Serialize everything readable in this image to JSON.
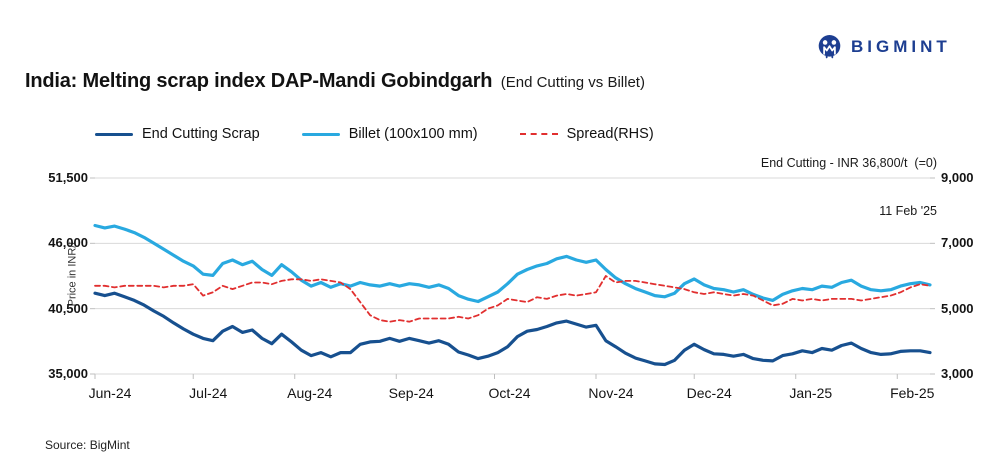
{
  "header": {
    "title_main": "India: Melting scrap index DAP-Mandi Gobindgarh",
    "title_sub": "(End Cutting vs Billet)",
    "brand": "BIGMINT"
  },
  "annotation": {
    "line1": "End Cutting - INR 36,800/t  (=0)",
    "line2": "11 Feb '25"
  },
  "legend": [
    {
      "label": "End Cutting Scrap",
      "color": "#17508f",
      "style": "solid"
    },
    {
      "label": "Billet (100x100 mm)",
      "color": "#29a9e0",
      "style": "solid"
    },
    {
      "label": "Spread(RHS)",
      "color": "#e12f2f",
      "style": "dashed"
    }
  ],
  "source": "Source: BigMint",
  "colors": {
    "end_cutting": "#17508f",
    "billet": "#29a9e0",
    "spread": "#e12f2f",
    "brand_navy": "#1d3e91",
    "gridline": "#d9d9d9",
    "tick": "#bfbfbf"
  },
  "chart_data": {
    "type": "line",
    "title": "India: Melting scrap index DAP-Mandi Gobindgarh (End Cutting vs Billet)",
    "x_axis": {
      "tick_labels": [
        "Jun-24",
        "Jul-24",
        "Aug-24",
        "Sep-24",
        "Oct-24",
        "Nov-24",
        "Dec-24",
        "Jan-25",
        "Feb-25"
      ],
      "tick_days": [
        0,
        30,
        61,
        92,
        122,
        153,
        183,
        214,
        245
      ],
      "total_days": 255
    },
    "left_axis": {
      "label": "Price in INR/t",
      "tick_values": [
        35000,
        40500,
        46000,
        51500
      ],
      "tick_labels": [
        "35,000",
        "40,500",
        "46,000",
        "51,500"
      ],
      "min": 35000,
      "max": 51500
    },
    "right_axis": {
      "tick_values": [
        3000,
        5000,
        7000,
        9000
      ],
      "tick_labels": [
        "3,000",
        "5,000",
        "7,000",
        "9,000"
      ],
      "min": 3000,
      "max": 9000
    },
    "grid": true,
    "legend_position": "top-left",
    "latest": {
      "end_cutting_inr_per_t": 36800,
      "date": "11 Feb '25",
      "change": 0
    },
    "series": [
      {
        "name": "Billet (100x100 mm)",
        "axis": "left",
        "color": "#29a9e0",
        "dash": false,
        "width": 3.2,
        "values": [
          47500,
          47300,
          47450,
          47200,
          46900,
          46500,
          46000,
          45500,
          45000,
          44500,
          44100,
          43400,
          43300,
          44300,
          44600,
          44200,
          44500,
          43800,
          43300,
          44200,
          43600,
          42900,
          42400,
          42700,
          42300,
          42600,
          42400,
          42700,
          42500,
          42400,
          42600,
          42400,
          42600,
          42500,
          42300,
          42500,
          42200,
          41600,
          41300,
          41100,
          41500,
          41900,
          42600,
          43400,
          43800,
          44100,
          44300,
          44700,
          44900,
          44600,
          44400,
          44600,
          43800,
          43100,
          42600,
          42200,
          41900,
          41600,
          41500,
          41800,
          42600,
          43000,
          42500,
          42200,
          42100,
          41900,
          42100,
          41700,
          41400,
          41200,
          41700,
          42000,
          42200,
          42100,
          42400,
          42300,
          42700,
          42900,
          42400,
          42100,
          42000,
          42100,
          42400,
          42600,
          42700,
          42500
        ]
      },
      {
        "name": "End Cutting Scrap",
        "axis": "left",
        "color": "#17508f",
        "dash": false,
        "width": 3.2,
        "values": [
          41800,
          41600,
          41800,
          41500,
          41200,
          40800,
          40300,
          39850,
          39300,
          38800,
          38350,
          38000,
          37800,
          38600,
          39000,
          38500,
          38700,
          38000,
          37550,
          38350,
          37700,
          37000,
          36550,
          36800,
          36450,
          36800,
          36800,
          37500,
          37700,
          37750,
          38000,
          37750,
          38000,
          37800,
          37600,
          37800,
          37500,
          36850,
          36600,
          36300,
          36500,
          36800,
          37300,
          38150,
          38600,
          38750,
          39000,
          39300,
          39450,
          39200,
          38950,
          39100,
          37800,
          37300,
          36750,
          36350,
          36100,
          35850,
          35800,
          36150,
          37000,
          37500,
          37050,
          36700,
          36650,
          36500,
          36650,
          36300,
          36150,
          36100,
          36550,
          36700,
          36950,
          36800,
          37150,
          37000,
          37400,
          37600,
          37150,
          36800,
          36650,
          36700,
          36900,
          36950,
          36950,
          36800
        ]
      },
      {
        "name": "Spread(RHS)",
        "axis": "right",
        "color": "#e12f2f",
        "dash": true,
        "width": 1.8,
        "values": [
          5700,
          5700,
          5650,
          5700,
          5700,
          5700,
          5700,
          5650,
          5700,
          5700,
          5750,
          5400,
          5500,
          5700,
          5600,
          5700,
          5800,
          5800,
          5750,
          5850,
          5900,
          5900,
          5850,
          5900,
          5850,
          5800,
          5600,
          5200,
          4800,
          4650,
          4600,
          4650,
          4600,
          4700,
          4700,
          4700,
          4700,
          4750,
          4700,
          4800,
          5000,
          5100,
          5300,
          5250,
          5200,
          5350,
          5300,
          5400,
          5450,
          5400,
          5450,
          5500,
          6000,
          5800,
          5850,
          5850,
          5800,
          5750,
          5700,
          5650,
          5600,
          5500,
          5450,
          5500,
          5450,
          5400,
          5450,
          5400,
          5250,
          5100,
          5150,
          5300,
          5250,
          5300,
          5250,
          5300,
          5300,
          5300,
          5250,
          5300,
          5350,
          5400,
          5500,
          5650,
          5750,
          5700
        ]
      }
    ]
  }
}
